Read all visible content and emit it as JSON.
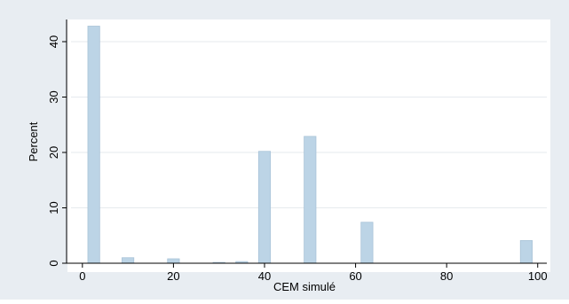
{
  "chart_data": {
    "type": "bar",
    "title": "",
    "xlabel": "CEM simulé",
    "ylabel": "Percent",
    "xlim": [
      -2.5,
      102
    ],
    "ylim": [
      0,
      44
    ],
    "xticks": [
      "0",
      "20",
      "40",
      "60",
      "80",
      "100"
    ],
    "yticks": [
      "0",
      "10",
      "20",
      "30",
      "40"
    ],
    "bar_width": 2.6,
    "grid": "horizontal",
    "series": [
      {
        "x": [
          2.5,
          10,
          20,
          30,
          35,
          40,
          50,
          62.5,
          97.5
        ],
        "values": [
          42.8,
          1.0,
          0.8,
          0.15,
          0.3,
          20.2,
          22.9,
          7.4,
          4.1
        ]
      }
    ],
    "colors": {
      "outer_bg": "#e8edf2",
      "plot_bg": "#ffffff",
      "bar_fill": "#bcd4e6",
      "bar_stroke": "#a9c3d8",
      "grid": "#e6eaee"
    }
  }
}
